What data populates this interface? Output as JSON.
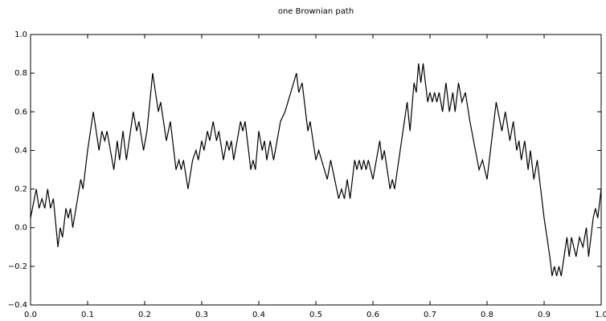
{
  "chart_data": {
    "type": "line",
    "title": "one Brownian path",
    "color": "#000000",
    "x": [
      0,
      0.01,
      0.015,
      0.02,
      0.025,
      0.03,
      0.035,
      0.04,
      0.048,
      0.052,
      0.056,
      0.062,
      0.066,
      0.07,
      0.074,
      0.088,
      0.092,
      0.1,
      0.11,
      0.115,
      0.12,
      0.125,
      0.13,
      0.134,
      0.14,
      0.146,
      0.152,
      0.156,
      0.162,
      0.168,
      0.18,
      0.186,
      0.19,
      0.198,
      0.204,
      0.214,
      0.224,
      0.228,
      0.238,
      0.245,
      0.255,
      0.26,
      0.264,
      0.268,
      0.276,
      0.284,
      0.29,
      0.294,
      0.3,
      0.304,
      0.31,
      0.314,
      0.32,
      0.326,
      0.33,
      0.338,
      0.344,
      0.348,
      0.352,
      0.356,
      0.368,
      0.372,
      0.376,
      0.386,
      0.39,
      0.394,
      0.4,
      0.406,
      0.41,
      0.414,
      0.42,
      0.426,
      0.438,
      0.446,
      0.466,
      0.47,
      0.476,
      0.486,
      0.49,
      0.5,
      0.505,
      0.51,
      0.52,
      0.526,
      0.54,
      0.545,
      0.55,
      0.555,
      0.56,
      0.568,
      0.572,
      0.576,
      0.58,
      0.584,
      0.588,
      0.592,
      0.6,
      0.612,
      0.616,
      0.62,
      0.63,
      0.634,
      0.638,
      0.66,
      0.665,
      0.672,
      0.676,
      0.68,
      0.684,
      0.688,
      0.696,
      0.7,
      0.704,
      0.708,
      0.712,
      0.716,
      0.722,
      0.728,
      0.734,
      0.74,
      0.744,
      0.75,
      0.756,
      0.762,
      0.77,
      0.786,
      0.792,
      0.8,
      0.808,
      0.816,
      0.826,
      0.832,
      0.84,
      0.846,
      0.852,
      0.856,
      0.86,
      0.866,
      0.872,
      0.876,
      0.882,
      0.888,
      0.892,
      0.9,
      0.91,
      0.914,
      0.918,
      0.922,
      0.926,
      0.93,
      0.94,
      0.944,
      0.948,
      0.952,
      0.956,
      0.962,
      0.968,
      0.974,
      0.978,
      0.986,
      0.99,
      0.994,
      1
    ],
    "values": [
      0.05,
      0.2,
      0.1,
      0.15,
      0.1,
      0.2,
      0.1,
      0.15,
      -0.1,
      0,
      -0.05,
      0.1,
      0.05,
      0.1,
      0,
      0.25,
      0.2,
      0.4,
      0.6,
      0.5,
      0.4,
      0.5,
      0.45,
      0.5,
      0.4,
      0.3,
      0.45,
      0.35,
      0.5,
      0.35,
      0.6,
      0.5,
      0.55,
      0.4,
      0.5,
      0.8,
      0.6,
      0.65,
      0.45,
      0.55,
      0.3,
      0.35,
      0.3,
      0.35,
      0.2,
      0.35,
      0.4,
      0.35,
      0.45,
      0.4,
      0.5,
      0.45,
      0.55,
      0.45,
      0.5,
      0.35,
      0.45,
      0.4,
      0.45,
      0.35,
      0.55,
      0.5,
      0.55,
      0.3,
      0.35,
      0.3,
      0.5,
      0.4,
      0.45,
      0.35,
      0.45,
      0.35,
      0.55,
      0.6,
      0.8,
      0.7,
      0.75,
      0.5,
      0.55,
      0.35,
      0.4,
      0.35,
      0.25,
      0.35,
      0.15,
      0.2,
      0.15,
      0.25,
      0.15,
      0.35,
      0.3,
      0.35,
      0.3,
      0.35,
      0.3,
      0.35,
      0.25,
      0.45,
      0.35,
      0.4,
      0.2,
      0.25,
      0.2,
      0.65,
      0.5,
      0.75,
      0.7,
      0.85,
      0.75,
      0.85,
      0.65,
      0.7,
      0.65,
      0.7,
      0.65,
      0.7,
      0.6,
      0.75,
      0.6,
      0.7,
      0.6,
      0.75,
      0.65,
      0.7,
      0.55,
      0.3,
      0.35,
      0.25,
      0.45,
      0.65,
      0.5,
      0.6,
      0.45,
      0.55,
      0.4,
      0.45,
      0.35,
      0.45,
      0.3,
      0.4,
      0.25,
      0.35,
      0.25,
      0.05,
      -0.15,
      -0.25,
      -0.2,
      -0.25,
      -0.2,
      -0.25,
      -0.05,
      -0.15,
      -0.05,
      -0.1,
      -0.15,
      -0.05,
      -0.1,
      0,
      -0.15,
      0.05,
      0.1,
      0.05,
      0.2
    ],
    "xlim": [
      0,
      1
    ],
    "ylim": [
      -0.4,
      1
    ],
    "xticks": [
      {
        "value": 0,
        "label": "0.0"
      },
      0.1,
      0.2,
      0.3,
      0.4,
      0.5,
      0.6,
      0.7,
      0.8,
      0.9,
      {
        "value": 1,
        "label": "1.0"
      }
    ],
    "yticks": [
      {
        "value": -0.4,
        "label": "−0.4"
      },
      {
        "value": -0.2,
        "label": "−0.2"
      },
      {
        "value": 0,
        "label": "0.0"
      },
      0.2,
      0.4,
      0.6,
      0.8,
      {
        "value": 1,
        "label": "1.0"
      }
    ],
    "grid": false
  }
}
